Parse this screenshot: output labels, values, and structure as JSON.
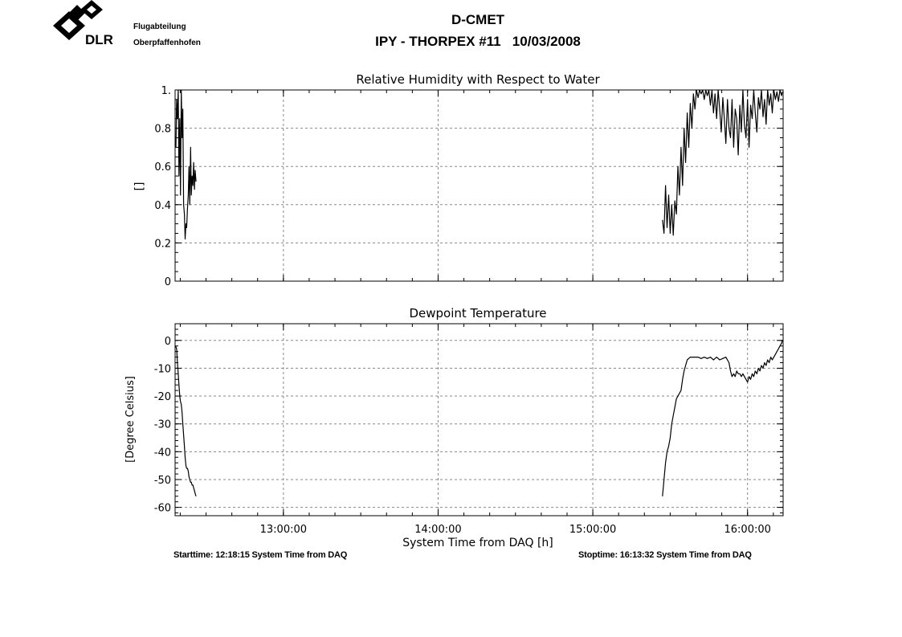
{
  "header": {
    "logo_text": "DLR",
    "org_line1": "Flugabteilung",
    "org_line2": "Oberpfaffenhofen",
    "title": "D-CMET",
    "subtitle": "IPY - THORPEX #11   10/03/2008"
  },
  "footer": {
    "start": "Starttime: 12:18:15 System Time from DAQ",
    "stop": "Stoptime: 16:13:32 System Time from DAQ"
  },
  "chart_data": [
    {
      "type": "line",
      "title": "Relative Humidity with Respect to Water",
      "ylabel": "[]",
      "xlabel": "",
      "ylim": [
        0,
        1
      ],
      "yticks": [
        0,
        0.2,
        0.4,
        0.6,
        0.8,
        1
      ],
      "ytick_labels": [
        "0",
        "0.2",
        "0.4",
        "0.6",
        "0.8",
        "1."
      ],
      "xlim": [
        12.3,
        16.23
      ],
      "xticks": [
        13,
        14,
        15,
        16
      ],
      "xtick_labels": [],
      "grid": true,
      "series": [
        {
          "x": [
            12.305,
            12.31,
            12.315,
            12.32,
            12.325,
            12.33,
            12.335,
            12.34,
            12.345,
            12.35,
            12.355,
            12.36,
            12.365,
            12.37,
            12.375,
            12.38,
            12.385,
            12.39,
            12.395,
            12.4,
            12.405,
            12.41,
            12.415,
            12.42,
            12.425,
            12.43,
            12.435
          ],
          "y": [
            0.7,
            0.95,
            0.85,
            1.0,
            0.55,
            0.85,
            0.45,
            1.0,
            0.75,
            0.9,
            0.4,
            0.35,
            0.22,
            0.3,
            0.28,
            0.38,
            0.45,
            0.6,
            0.4,
            0.7,
            0.45,
            0.55,
            0.5,
            0.62,
            0.48,
            0.58,
            0.52
          ]
        },
        {
          "x": [
            15.45,
            15.46,
            15.47,
            15.48,
            15.49,
            15.5,
            15.51,
            15.52,
            15.53,
            15.54,
            15.55,
            15.56,
            15.57,
            15.58,
            15.59,
            15.6,
            15.61,
            15.62,
            15.63,
            15.64,
            15.65,
            15.66,
            15.67,
            15.68,
            15.69,
            15.7,
            15.71,
            15.72,
            15.73,
            15.74,
            15.75,
            15.76,
            15.77,
            15.78,
            15.79,
            15.8,
            15.81,
            15.82,
            15.83,
            15.84,
            15.85,
            15.86,
            15.87,
            15.88,
            15.89,
            15.9,
            15.91,
            15.92,
            15.93,
            15.94,
            15.95,
            15.96,
            15.97,
            15.98,
            15.99,
            16.0,
            16.01,
            16.02,
            16.03,
            16.04,
            16.05,
            16.06,
            16.07,
            16.08,
            16.09,
            16.1,
            16.11,
            16.12,
            16.13,
            16.14,
            16.15,
            16.16,
            16.17,
            16.18,
            16.19,
            16.2,
            16.21,
            16.22,
            16.225
          ],
          "y": [
            0.32,
            0.25,
            0.5,
            0.28,
            0.45,
            0.25,
            0.4,
            0.24,
            0.42,
            0.35,
            0.6,
            0.45,
            0.7,
            0.5,
            0.8,
            0.62,
            0.88,
            0.7,
            0.93,
            0.8,
            0.98,
            0.9,
            1.0,
            0.96,
            1.0,
            0.98,
            1.0,
            0.95,
            1.0,
            0.97,
            1.0,
            0.92,
            1.0,
            0.88,
            0.98,
            0.85,
            1.0,
            0.9,
            0.78,
            0.96,
            0.85,
            0.72,
            0.95,
            0.8,
            0.75,
            0.95,
            0.7,
            0.9,
            0.85,
            0.66,
            0.92,
            0.78,
            1.0,
            0.82,
            0.75,
            0.95,
            0.7,
            0.92,
            0.85,
            1.0,
            0.88,
            0.78,
            0.96,
            0.9,
            1.0,
            0.86,
            0.95,
            0.82,
            1.0,
            0.92,
            0.98,
            0.88,
            1.0,
            0.95,
            0.99,
            0.94,
            1.0,
            0.97,
            0.99
          ]
        }
      ]
    },
    {
      "type": "line",
      "title": "Dewpoint Temperature",
      "ylabel": "[Degree Celsius]",
      "xlabel": "System Time from DAQ [h]",
      "ylim": [
        -63,
        6
      ],
      "yticks": [
        0,
        -10,
        -20,
        -30,
        -40,
        -50,
        -60
      ],
      "ytick_labels": [
        "0",
        "-10",
        "-20",
        "-30",
        "-40",
        "-50",
        "-60"
      ],
      "xlim": [
        12.3,
        16.23
      ],
      "xticks": [
        13,
        14,
        15,
        16
      ],
      "xtick_labels": [
        "13:00:00",
        "14:00:00",
        "15:00:00",
        "16:00:00"
      ],
      "grid": true,
      "series": [
        {
          "x": [
            12.303,
            12.31,
            12.315,
            12.32,
            12.325,
            12.33,
            12.335,
            12.34,
            12.345,
            12.35,
            12.355,
            12.36,
            12.365,
            12.37,
            12.375,
            12.38,
            12.385,
            12.39,
            12.395,
            12.4,
            12.405,
            12.41,
            12.415,
            12.42,
            12.425,
            12.43,
            12.435
          ],
          "y": [
            -2,
            -3,
            -8,
            -12,
            -16,
            -20,
            -22,
            -23,
            -26,
            -30,
            -34,
            -38,
            -42,
            -45,
            -46,
            -46,
            -47,
            -49,
            -50,
            -51,
            -51,
            -52,
            -52,
            -53,
            -54,
            -55,
            -56
          ]
        },
        {
          "x": [
            15.45,
            15.46,
            15.47,
            15.48,
            15.49,
            15.5,
            15.51,
            15.52,
            15.53,
            15.54,
            15.55,
            15.56,
            15.57,
            15.58,
            15.59,
            15.6,
            15.61,
            15.62,
            15.63,
            15.64,
            15.65,
            15.66,
            15.67,
            15.68,
            15.7,
            15.72,
            15.74,
            15.76,
            15.78,
            15.8,
            15.82,
            15.84,
            15.86,
            15.88,
            15.89,
            15.9,
            15.91,
            15.92,
            15.93,
            15.94,
            15.95,
            15.96,
            15.97,
            15.98,
            15.99,
            16.0,
            16.01,
            16.02,
            16.03,
            16.04,
            16.05,
            16.06,
            16.07,
            16.08,
            16.09,
            16.1,
            16.11,
            16.12,
            16.13,
            16.14,
            16.15,
            16.16,
            16.17,
            16.18,
            16.19,
            16.2,
            16.21,
            16.22,
            16.225
          ],
          "y": [
            -56,
            -50,
            -44,
            -40,
            -38,
            -35,
            -30,
            -27,
            -24,
            -21,
            -20,
            -19,
            -18,
            -14,
            -11,
            -9,
            -7,
            -6.5,
            -6,
            -6,
            -6,
            -6,
            -6,
            -6,
            -6.5,
            -6,
            -6.5,
            -6,
            -7,
            -6,
            -7,
            -6.5,
            -6,
            -8,
            -11,
            -13,
            -12,
            -13,
            -11,
            -12,
            -12,
            -13,
            -12,
            -13,
            -14,
            -15,
            -13,
            -14,
            -12,
            -13,
            -11,
            -12,
            -10,
            -11,
            -9,
            -10,
            -8,
            -9,
            -7,
            -8,
            -6,
            -7,
            -6,
            -5,
            -4,
            -3,
            -2,
            -1,
            0
          ]
        }
      ]
    }
  ]
}
